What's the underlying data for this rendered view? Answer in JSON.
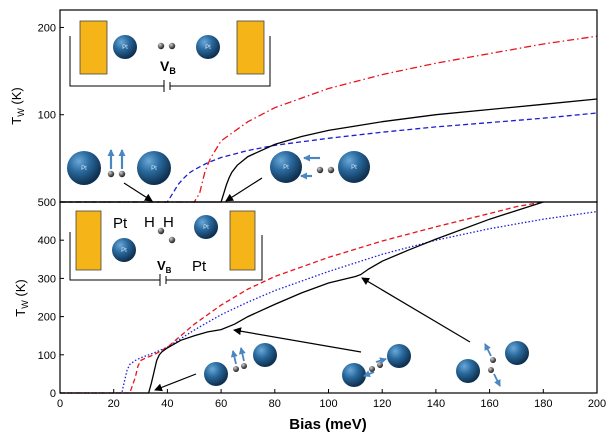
{
  "chart_data": [
    {
      "type": "line",
      "panel": "top",
      "xlim": [
        0,
        200
      ],
      "ylim": [
        0,
        220
      ],
      "x_ticks": [],
      "y_ticks": [
        100,
        200
      ],
      "y_tick_labels": [
        "100",
        "200"
      ],
      "ylabel_main": "T",
      "ylabel_sub": "W",
      "ylabel_unit": " (K)",
      "grid": false,
      "series": [
        {
          "style": "dash-dot",
          "color": "#e8141c",
          "x": [
            0,
            40,
            48,
            50,
            52,
            54,
            56,
            60,
            70,
            80,
            100,
            120,
            140,
            160,
            180,
            200
          ],
          "y": [
            0,
            0,
            0,
            0,
            10,
            35,
            50,
            70,
            92,
            108,
            130,
            146,
            159,
            170,
            181,
            190
          ]
        },
        {
          "style": "dashed",
          "color": "#1c1cd8",
          "x": [
            0,
            40,
            42,
            44,
            46,
            48,
            50,
            55,
            60,
            70,
            80,
            100,
            120,
            140,
            160,
            180,
            200
          ],
          "y": [
            0,
            0,
            10,
            20,
            27,
            33,
            37,
            45,
            51,
            59,
            65,
            73,
            80,
            86,
            91,
            96,
            102
          ]
        },
        {
          "style": "solid",
          "color": "#000000",
          "x": [
            0,
            58,
            60,
            61,
            62,
            63,
            64,
            66,
            70,
            80,
            90,
            100,
            120,
            140,
            160,
            180,
            200
          ],
          "y": [
            0,
            0,
            0,
            10,
            20,
            28,
            34,
            42,
            52,
            66,
            75,
            82,
            92,
            100,
            106,
            112,
            118
          ]
        }
      ],
      "inset": {
        "v_label_main": "V",
        "v_label_sub": "B"
      },
      "atom_labels": [
        "Pt",
        "Pt",
        "Pt",
        "Pt",
        "Pt",
        "Pt"
      ]
    },
    {
      "type": "line",
      "panel": "bottom",
      "xlim": [
        0,
        200
      ],
      "ylim": [
        0,
        500
      ],
      "x_ticks": [
        0,
        20,
        40,
        60,
        80,
        100,
        120,
        140,
        160,
        180,
        200
      ],
      "x_tick_labels": [
        "0",
        "20",
        "40",
        "60",
        "80",
        "100",
        "120",
        "140",
        "160",
        "180",
        "200"
      ],
      "y_ticks": [
        0,
        100,
        200,
        300,
        400,
        500
      ],
      "y_tick_labels": [
        "0",
        "100",
        "200",
        "300",
        "400",
        "500"
      ],
      "xlabel": "Bias (meV)",
      "ylabel_main": "T",
      "ylabel_sub": "W",
      "ylabel_unit": " (K)",
      "grid": false,
      "series": [
        {
          "style": "dotted",
          "color": "#1c1cd8",
          "x": [
            0,
            23,
            24,
            25,
            26,
            28,
            30,
            35,
            40,
            50,
            60,
            70,
            80,
            100,
            120,
            140,
            160,
            180,
            200
          ],
          "y": [
            0,
            0,
            30,
            60,
            75,
            85,
            92,
            105,
            120,
            165,
            205,
            238,
            268,
            318,
            363,
            400,
            430,
            455,
            475
          ]
        },
        {
          "style": "dashed",
          "color": "#e8141c",
          "x": [
            0,
            26,
            28,
            29,
            30,
            32,
            35,
            40,
            50,
            60,
            70,
            80,
            100,
            120,
            140,
            160,
            170,
            180
          ],
          "y": [
            0,
            0,
            40,
            70,
            85,
            92,
            100,
            120,
            180,
            230,
            272,
            305,
            355,
            398,
            435,
            470,
            488,
            505
          ]
        },
        {
          "style": "solid",
          "color": "#000000",
          "x": [
            0,
            33,
            34,
            35,
            36,
            37,
            38,
            40,
            45,
            50,
            55,
            60,
            65,
            70,
            80,
            90,
            100,
            110,
            112,
            115,
            120,
            130,
            140,
            160,
            180
          ],
          "y": [
            0,
            0,
            25,
            55,
            85,
            100,
            108,
            118,
            138,
            150,
            160,
            166,
            180,
            200,
            232,
            262,
            288,
            305,
            310,
            325,
            345,
            375,
            403,
            455,
            505
          ]
        }
      ],
      "inset": {
        "pt_left": "Pt",
        "pt_right": "Pt",
        "h_left": "H",
        "h_right": "H",
        "v_label_main": "V",
        "v_label_sub": "B"
      },
      "atom_labels": [
        "Pt",
        "Pt"
      ]
    }
  ]
}
